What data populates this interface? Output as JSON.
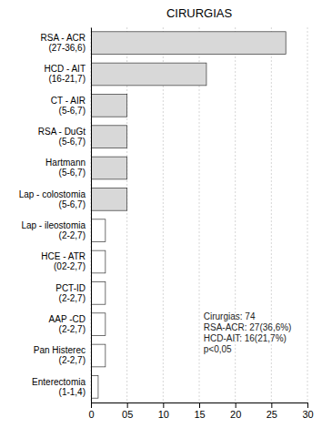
{
  "chart_data": {
    "type": "bar",
    "orientation": "horizontal",
    "title": "CIRURGIAS",
    "categories": [
      "RSA - ACR\n(27-36,6)",
      "HCD - AIT\n(16-21,7)",
      "CT - AIR\n(5-6,7)",
      "RSA - DuGt\n(5-6,7)",
      "Hartmann\n(5-6,7)",
      "Lap - colostomia\n(5-6,7)",
      "Lap - ileostomia\n(2-2,7)",
      "HCE - ATR\n(02-2,7)",
      "PCT-ID\n(2-2,7)",
      "AAP -CD\n(2-2,7)",
      "Pan Histerec\n(2-2,7)",
      "Enterectomia\n(1-1,4)"
    ],
    "values": [
      27,
      16,
      5,
      5,
      5,
      5,
      2,
      2,
      2,
      2,
      2,
      1
    ],
    "colors": [
      "#d8d8d8",
      "#d8d8d8",
      "#d8d8d8",
      "#d8d8d8",
      "#d8d8d8",
      "#d8d8d8",
      "#ffffff",
      "#ffffff",
      "#ffffff",
      "#ffffff",
      "#ffffff",
      "#ffffff"
    ],
    "xlim": [
      0,
      30
    ],
    "xticks": [
      0,
      {
        "value": 5,
        "label": "05"
      },
      10,
      15,
      20,
      25,
      30
    ],
    "grid": true,
    "annotations": [
      "Cirurgias: 74\nRSA-ACR: 27(36,6%)\nHCD-AIT: 16(21,7%)\np<0,05"
    ]
  }
}
